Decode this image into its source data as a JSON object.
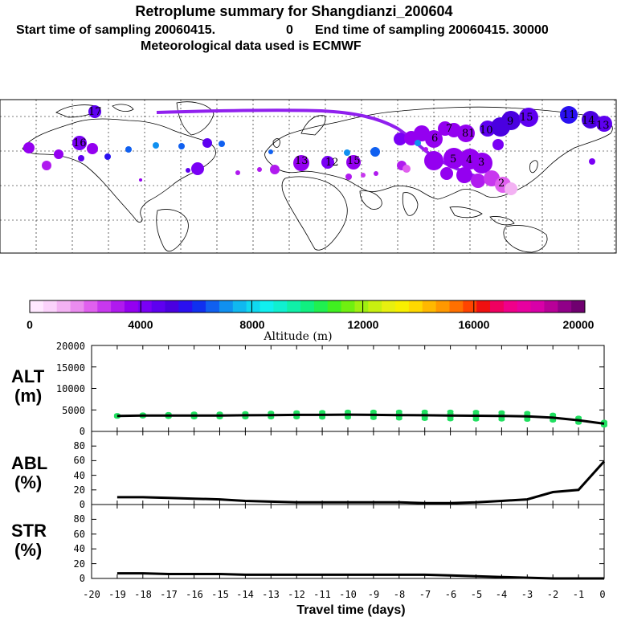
{
  "header": {
    "title": "Retroplume summary for Shangdianzi_200604",
    "line2_start": "Start time of sampling 20060415.",
    "line2_start_hour": "0",
    "line2_end": "End time of sampling 20060415. 30000",
    "line3": "Meteorological data used is ECMWF"
  },
  "colorbar": {
    "label": "Altitude (m)",
    "ticks": [
      "0",
      "4000",
      "8000",
      "12000",
      "16000",
      "20000"
    ],
    "colors": [
      "#ffe8ff",
      "#fbd2fb",
      "#f3b2f3",
      "#ea8cef",
      "#e060ef",
      "#c838ef",
      "#b01aef",
      "#9400f0",
      "#7a00f5",
      "#5e00f0",
      "#4a00e0",
      "#2a10f0",
      "#1030f0",
      "#1060f0",
      "#1090f0",
      "#10b8f0",
      "#10d8f0",
      "#10f0f0",
      "#10f0d0",
      "#10f0a8",
      "#10f080",
      "#20f050",
      "#40f020",
      "#70f010",
      "#a0f010",
      "#c8f010",
      "#e8f010",
      "#f8f000",
      "#ffd800",
      "#ffb800",
      "#ff9800",
      "#ff7000",
      "#ff4400",
      "#f01010",
      "#f00060",
      "#f0008a",
      "#e800a0",
      "#d800a8",
      "#b80098",
      "#900088",
      "#700070"
    ]
  },
  "map": {
    "labels": [
      "17",
      "16",
      "15",
      "15",
      "14",
      "13",
      "13",
      "12",
      "11",
      "10",
      "9",
      "8",
      "7",
      "6",
      "5",
      "4",
      "3",
      "2",
      "1"
    ]
  },
  "xaxis": {
    "label": "Travel time (days)",
    "ticks": [
      "-20",
      "-19",
      "-18",
      "-17",
      "-16",
      "-15",
      "-14",
      "-13",
      "-12",
      "-11",
      "-10",
      "-9",
      "-8",
      "-7",
      "-6",
      "-5",
      "-4",
      "-3",
      "-2",
      "-1",
      "0"
    ]
  },
  "chart_data": [
    {
      "type": "line",
      "panel_label_top": "ALT",
      "panel_label_bottom": "(m)",
      "ylim": [
        0,
        20000
      ],
      "yticks": [
        "20000",
        "15000",
        "10000",
        "5000",
        "0"
      ],
      "x": [
        -19,
        -18,
        -17,
        -16,
        -15,
        -14,
        -13,
        -12,
        -11,
        -10,
        -9,
        -8,
        -7,
        -6,
        -5,
        -4,
        -3,
        -2,
        -1,
        0
      ],
      "series": [
        {
          "name": "mean altitude",
          "values": [
            3600,
            3700,
            3700,
            3700,
            3700,
            3750,
            3800,
            3850,
            3850,
            3900,
            3850,
            3800,
            3750,
            3700,
            3650,
            3600,
            3500,
            3200,
            2600,
            1800
          ]
        }
      ],
      "scatter_color": "#20e060",
      "scatter_spread": [
        400,
        500,
        700,
        900,
        900,
        1000,
        1100,
        1200,
        1300,
        1400,
        1500,
        1600,
        1700,
        1800,
        1800,
        1700,
        1600,
        1400,
        1200,
        900
      ]
    },
    {
      "type": "line",
      "panel_label_top": "ABL",
      "panel_label_bottom": "(%)",
      "ylim": [
        0,
        100
      ],
      "yticks": [
        "80",
        "60",
        "40",
        "20",
        "0"
      ],
      "x": [
        -19,
        -18,
        -17,
        -16,
        -15,
        -14,
        -13,
        -12,
        -11,
        -10,
        -9,
        -8,
        -7,
        -6,
        -5,
        -4,
        -3,
        -2,
        -1,
        0
      ],
      "series": [
        {
          "name": "fraction in boundary layer",
          "values": [
            10,
            10,
            9,
            8,
            7,
            5,
            4,
            3,
            3,
            3,
            3,
            3,
            2,
            2,
            3,
            5,
            7,
            17,
            20,
            59
          ]
        }
      ]
    },
    {
      "type": "line",
      "panel_label_top": "STR",
      "panel_label_bottom": "(%)",
      "ylim": [
        0,
        100
      ],
      "yticks": [
        "80",
        "60",
        "40",
        "20",
        "0"
      ],
      "x": [
        -19,
        -18,
        -17,
        -16,
        -15,
        -14,
        -13,
        -12,
        -11,
        -10,
        -9,
        -8,
        -7,
        -6,
        -5,
        -4,
        -3,
        -2,
        -1,
        0
      ],
      "series": [
        {
          "name": "fraction in stratosphere",
          "values": [
            7,
            7,
            6,
            6,
            6,
            5,
            5,
            5,
            5,
            5,
            5,
            5,
            5,
            4,
            3,
            2,
            1,
            0,
            0,
            0
          ]
        }
      ]
    }
  ]
}
